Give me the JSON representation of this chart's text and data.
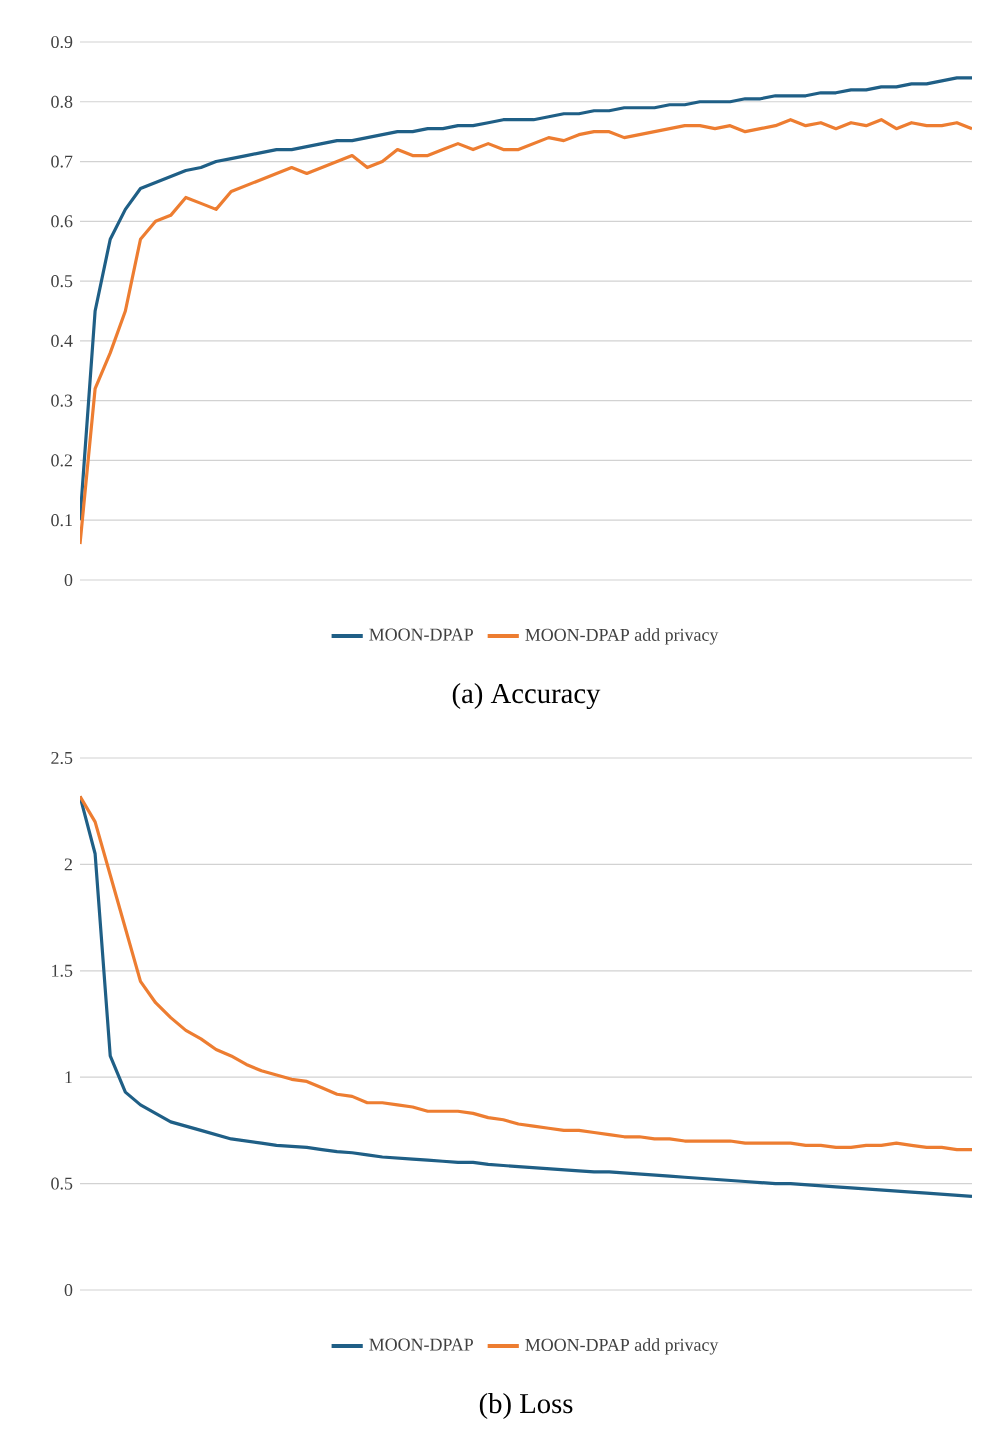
{
  "chart_data": [
    {
      "type": "line",
      "title": "(a)   Accuracy",
      "categories": [
        null,
        null,
        null,
        null,
        null,
        null,
        null,
        null,
        null,
        null,
        null,
        null,
        null,
        null,
        null,
        null,
        null,
        null,
        null,
        null,
        null,
        null,
        null,
        null,
        null,
        null,
        null,
        null,
        null,
        null,
        null,
        null,
        null,
        null,
        null,
        null,
        null,
        null,
        null,
        null,
        null,
        null,
        null,
        null,
        null,
        null,
        null,
        null,
        null,
        null,
        null,
        null,
        null,
        null,
        null,
        null,
        null,
        null,
        null,
        null
      ],
      "series": [
        {
          "name": "MOON-DPAP",
          "color": "#1f5f86",
          "values": [
            0.1,
            0.45,
            0.57,
            0.62,
            0.655,
            0.665,
            0.675,
            0.685,
            0.69,
            0.7,
            0.705,
            0.71,
            0.715,
            0.72,
            0.72,
            0.725,
            0.73,
            0.735,
            0.735,
            0.74,
            0.745,
            0.75,
            0.75,
            0.755,
            0.755,
            0.76,
            0.76,
            0.765,
            0.77,
            0.77,
            0.77,
            0.775,
            0.78,
            0.78,
            0.785,
            0.785,
            0.79,
            0.79,
            0.79,
            0.795,
            0.795,
            0.8,
            0.8,
            0.8,
            0.805,
            0.805,
            0.81,
            0.81,
            0.81,
            0.815,
            0.815,
            0.82,
            0.82,
            0.825,
            0.825,
            0.83,
            0.83,
            0.835,
            0.84,
            0.84
          ]
        },
        {
          "name": "MOON-DPAP add privacy",
          "color": "#ed7d31",
          "values": [
            0.06,
            0.32,
            0.38,
            0.45,
            0.57,
            0.6,
            0.61,
            0.64,
            0.63,
            0.62,
            0.65,
            0.66,
            0.67,
            0.68,
            0.69,
            0.68,
            0.69,
            0.7,
            0.71,
            0.69,
            0.7,
            0.72,
            0.71,
            0.71,
            0.72,
            0.73,
            0.72,
            0.73,
            0.72,
            0.72,
            0.73,
            0.74,
            0.735,
            0.745,
            0.75,
            0.75,
            0.74,
            0.745,
            0.75,
            0.755,
            0.76,
            0.76,
            0.755,
            0.76,
            0.75,
            0.755,
            0.76,
            0.77,
            0.76,
            0.765,
            0.755,
            0.765,
            0.76,
            0.77,
            0.755,
            0.765,
            0.76,
            0.76,
            0.765,
            0.755
          ]
        }
      ],
      "ylim": [
        0,
        0.9
      ],
      "yticks": [
        0,
        0.1,
        0.2,
        0.3,
        0.4,
        0.5,
        0.6,
        0.7,
        0.8,
        0.9
      ],
      "grid": "y",
      "legend": "bottom",
      "tick_labels": "y"
    },
    {
      "type": "line",
      "title": "(b)   Loss",
      "categories": [
        null,
        null,
        null,
        null,
        null,
        null,
        null,
        null,
        null,
        null,
        null,
        null,
        null,
        null,
        null,
        null,
        null,
        null,
        null,
        null,
        null,
        null,
        null,
        null,
        null,
        null,
        null,
        null,
        null,
        null,
        null,
        null,
        null,
        null,
        null,
        null,
        null,
        null,
        null,
        null,
        null,
        null,
        null,
        null,
        null,
        null,
        null,
        null,
        null,
        null,
        null,
        null,
        null,
        null,
        null,
        null,
        null,
        null,
        null,
        null
      ],
      "series": [
        {
          "name": "MOON-DPAP",
          "color": "#1f5f86",
          "values": [
            2.32,
            2.05,
            1.1,
            0.93,
            0.87,
            0.83,
            0.79,
            0.77,
            0.75,
            0.73,
            0.71,
            0.7,
            0.69,
            0.68,
            0.675,
            0.67,
            0.66,
            0.65,
            0.645,
            0.635,
            0.625,
            0.62,
            0.615,
            0.61,
            0.605,
            0.6,
            0.6,
            0.59,
            0.585,
            0.58,
            0.575,
            0.57,
            0.565,
            0.56,
            0.555,
            0.555,
            0.55,
            0.545,
            0.54,
            0.535,
            0.53,
            0.525,
            0.52,
            0.515,
            0.51,
            0.505,
            0.5,
            0.5,
            0.495,
            0.49,
            0.485,
            0.48,
            0.475,
            0.47,
            0.465,
            0.46,
            0.455,
            0.45,
            0.445,
            0.44
          ]
        },
        {
          "name": "MOON-DPAP add privacy",
          "color": "#ed7d31",
          "values": [
            2.32,
            2.2,
            1.95,
            1.7,
            1.45,
            1.35,
            1.28,
            1.22,
            1.18,
            1.13,
            1.1,
            1.06,
            1.03,
            1.01,
            0.99,
            0.98,
            0.95,
            0.92,
            0.91,
            0.88,
            0.88,
            0.87,
            0.86,
            0.84,
            0.84,
            0.84,
            0.83,
            0.81,
            0.8,
            0.78,
            0.77,
            0.76,
            0.75,
            0.75,
            0.74,
            0.73,
            0.72,
            0.72,
            0.71,
            0.71,
            0.7,
            0.7,
            0.7,
            0.7,
            0.69,
            0.69,
            0.69,
            0.69,
            0.68,
            0.68,
            0.67,
            0.67,
            0.68,
            0.68,
            0.69,
            0.68,
            0.67,
            0.67,
            0.66,
            0.66
          ]
        }
      ],
      "ylim": [
        0,
        2.5
      ],
      "yticks": [
        0,
        0.5,
        1,
        1.5,
        2,
        2.5
      ],
      "grid": "y",
      "legend": "bottom",
      "tick_labels": "y"
    }
  ]
}
